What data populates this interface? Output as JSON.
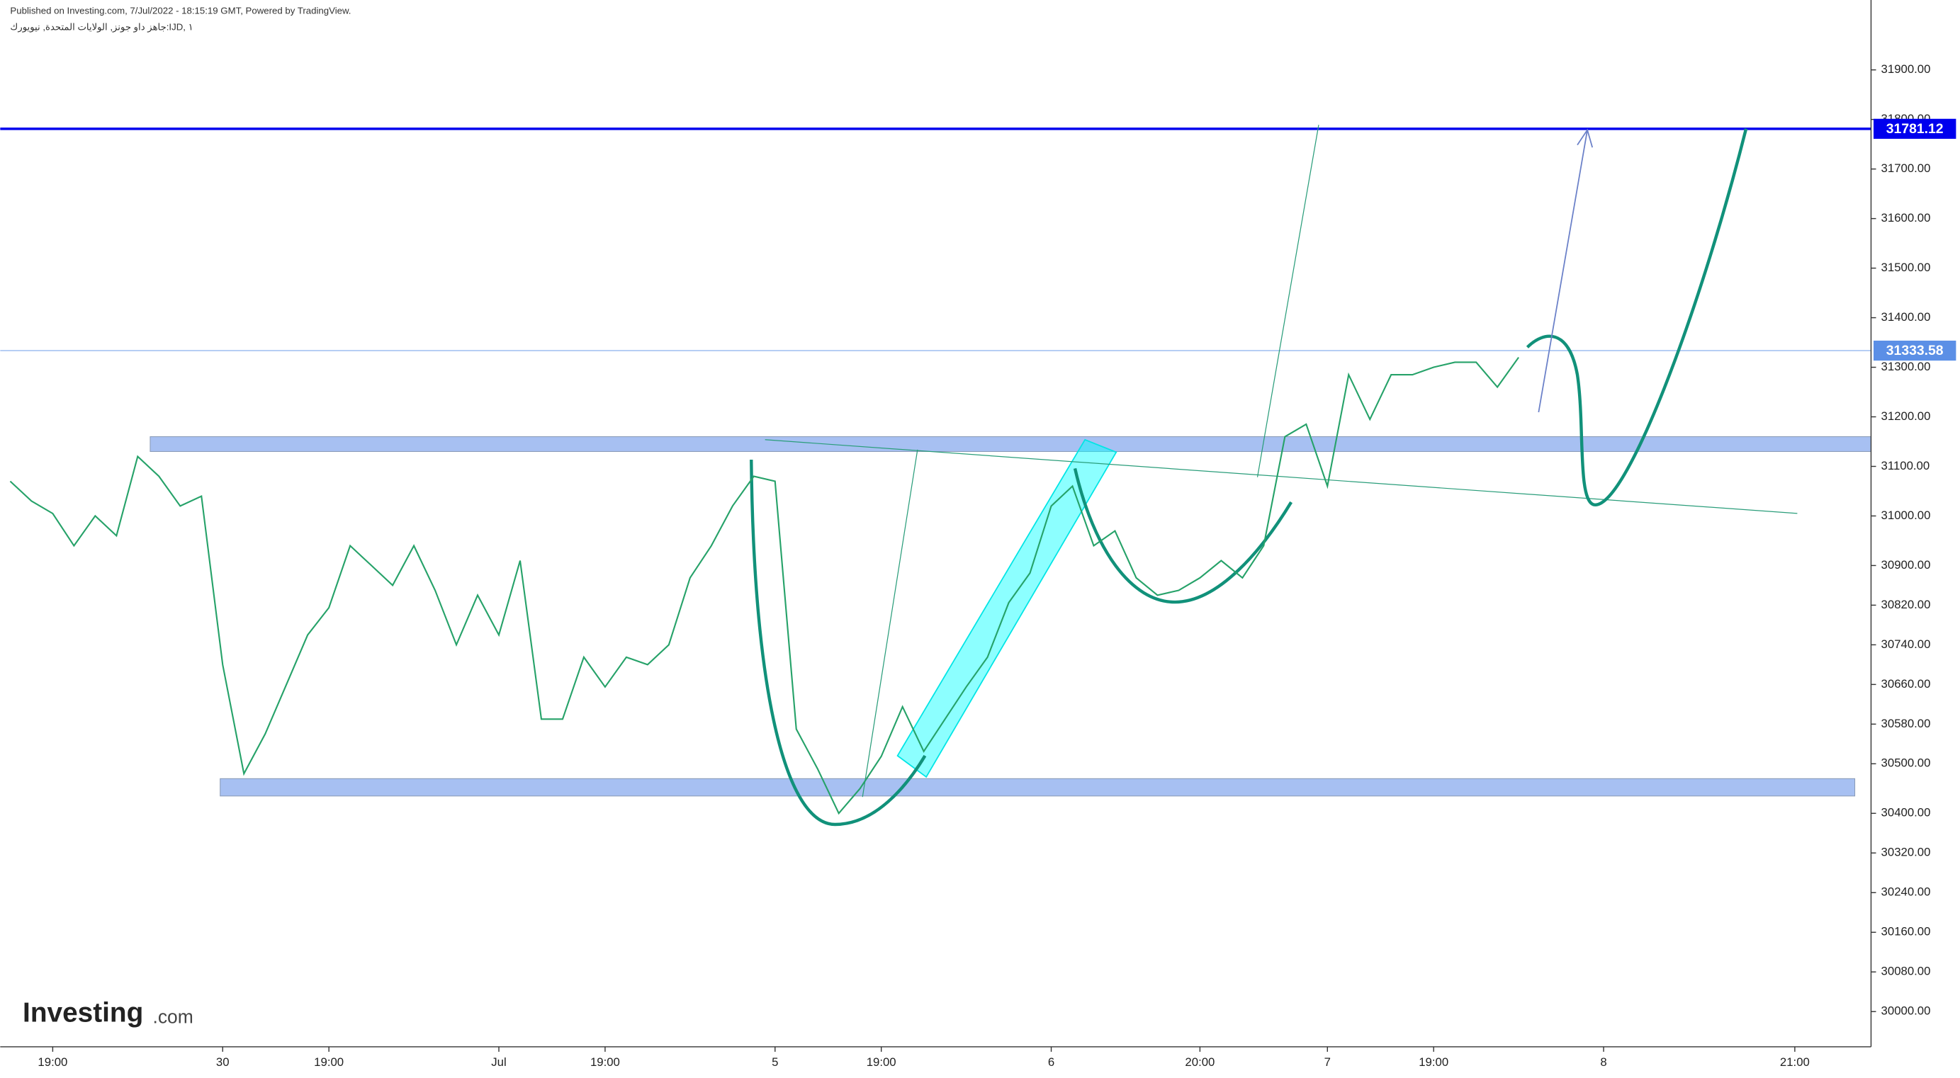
{
  "header": {
    "published": "Published on Investing.com, 7/Jul/2022 - 18:15:19 GMT, Powered by TradingView.",
    "instrument": "جاهز داو جونز, الولايات المتحدة, نيويورك:IJD, ١"
  },
  "logo": {
    "brand": "Investing",
    "suffix": ".com"
  },
  "chart_data": {
    "type": "line",
    "categories": [
      null,
      null,
      "19:00",
      null,
      null,
      null,
      null,
      null,
      null,
      null,
      "30",
      null,
      null,
      null,
      null,
      "19:00",
      null,
      null,
      null,
      null,
      null,
      null,
      null,
      "Jul",
      null,
      null,
      null,
      null,
      "19:00",
      null,
      null,
      null,
      null,
      null,
      null,
      null,
      "5",
      null,
      null,
      null,
      null,
      "19:00",
      null,
      null,
      null,
      null,
      null,
      null,
      null,
      "6",
      null,
      null,
      null,
      null,
      null,
      null,
      "20:00",
      null,
      null,
      null,
      null,
      null,
      "7",
      null,
      null,
      null,
      null,
      "19:00",
      null,
      null,
      null,
      null,
      null,
      null,
      null,
      "8",
      null,
      null,
      null,
      null,
      null,
      null,
      null,
      null,
      "21:00",
      null,
      null,
      null
    ],
    "series": [
      {
        "color": "#26a269",
        "values": [
          31070,
          31030,
          31005,
          30940,
          31000,
          30960,
          31120,
          31080,
          31020,
          31040,
          30700,
          30480,
          30560,
          30660,
          30760,
          30815,
          30940,
          30900,
          30860,
          30940,
          30850,
          30740,
          30840,
          30760,
          30910,
          30590,
          30590,
          30715,
          30655,
          30715,
          30700,
          30740,
          30875,
          30940,
          31020,
          31080,
          31070,
          30570,
          30490,
          30400,
          30450,
          30515,
          30615,
          30525,
          30590,
          30655,
          30715,
          30825,
          30885,
          31020,
          31060,
          30940,
          30970,
          30875,
          30840,
          30850,
          30875,
          30910,
          30875,
          30940,
          31160,
          31185,
          31060,
          31285,
          31195,
          31285,
          31285,
          31300,
          31310,
          31310,
          31260,
          31320,
          null,
          null,
          null,
          null,
          null,
          null,
          null,
          null,
          null,
          null,
          null,
          null,
          null,
          null,
          null,
          null
        ]
      }
    ],
    "ylim": [
      29929,
      32041
    ],
    "yticks": [
      {
        "value": 30000,
        "label": "30000.00"
      },
      {
        "value": 30080,
        "label": "30080.00"
      },
      {
        "value": 30160,
        "label": "30160.00"
      },
      {
        "value": 30240,
        "label": "30240.00"
      },
      {
        "value": 30320,
        "label": "30320.00"
      },
      {
        "value": 30400,
        "label": "30400.00"
      },
      {
        "value": 30500,
        "label": "30500.00"
      },
      {
        "value": 30580,
        "label": "30580.00"
      },
      {
        "value": 30660,
        "label": "30660.00"
      },
      {
        "value": 30740,
        "label": "30740.00"
      },
      {
        "value": 30820,
        "label": "30820.00"
      },
      {
        "value": 30900,
        "label": "30900.00"
      },
      {
        "value": 31000,
        "label": "31000.00"
      },
      {
        "value": 31100,
        "label": "31100.00"
      },
      {
        "value": 31200,
        "label": "31200.00"
      },
      {
        "value": 31300,
        "label": "31300.00"
      },
      {
        "value": 31400,
        "label": "31400.00"
      },
      {
        "value": 31500,
        "label": "31500.00"
      },
      {
        "value": 31600,
        "label": "31600.00"
      },
      {
        "value": 31700,
        "label": "31700.00"
      },
      {
        "value": 31800,
        "label": "31800.00"
      },
      {
        "value": 31900,
        "label": "31900.00"
      }
    ],
    "levels": [
      {
        "value": 31781.12,
        "color": "#0000ee"
      },
      {
        "value": 31333.58,
        "color": "#5b8fe6"
      }
    ],
    "zones": [
      {
        "top": 31160,
        "bottom": 31130,
        "color": "#a7c0f2"
      },
      {
        "top": 30470,
        "bottom": 30435,
        "color": "#a7c0f2"
      }
    ]
  }
}
